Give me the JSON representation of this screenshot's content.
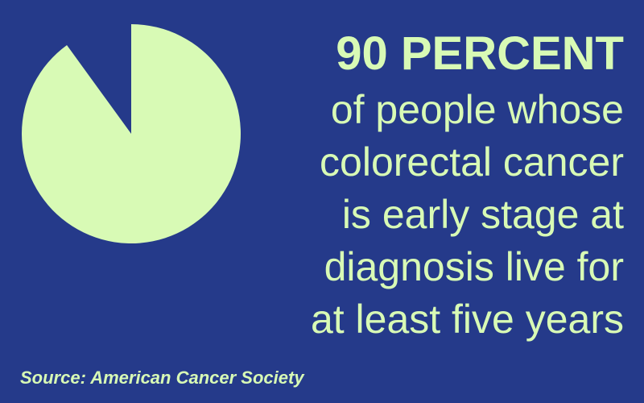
{
  "chart_data": {
    "type": "pie",
    "values": [
      90
    ],
    "value_labels": [
      "90 PERCENT"
    ],
    "color": "#d8fab5",
    "lines": [
      "of people whose",
      "colorectal cancer",
      "is early stage at",
      "diagnosis live for",
      "at least five years"
    ],
    "source": "Source: American Cancer Society"
  }
}
